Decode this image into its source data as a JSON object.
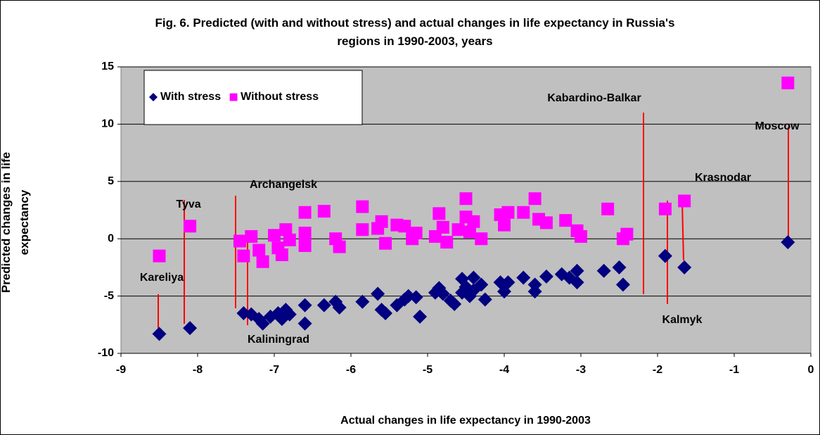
{
  "chart_data": {
    "type": "scatter",
    "title": "Fig. 6. Predicted (with and without stress) and actual changes in life expectancy in Russia's regions in 1990-2003, years",
    "xlabel": "Actual changes in life expectancy in 1990-2003",
    "ylabel": "Predicted changes in life expectancy",
    "xlim": [
      -9,
      0
    ],
    "xticks": [
      -9,
      -8,
      -7,
      -6,
      -5,
      -4,
      -3,
      -2,
      -1,
      0
    ],
    "ylim": [
      -10,
      15
    ],
    "yticks": [
      -10,
      -5,
      0,
      5,
      10,
      15
    ],
    "grid": true,
    "legend": "top-left",
    "annotations": [
      "Kareliya",
      "Tyva",
      "Archangelsk",
      "Kaliningrad",
      "Kabardino-Balkar",
      "Moscow",
      "Krasnodar",
      "Kalmyk"
    ],
    "series": [
      {
        "name": "With stress",
        "color": "#000080",
        "marker": "diamond",
        "x": [
          -8.5,
          -8.1,
          -7.4,
          -7.3,
          -7.2,
          -7.15,
          -7.05,
          -6.95,
          -6.9,
          -6.85,
          -6.8,
          -6.6,
          -6.6,
          -6.35,
          -6.2,
          -6.15,
          -5.85,
          -5.65,
          -5.6,
          -5.55,
          -5.4,
          -5.3,
          -5.25,
          -5.15,
          -5.1,
          -4.9,
          -4.85,
          -4.8,
          -4.7,
          -4.65,
          -4.55,
          -4.55,
          -4.5,
          -4.45,
          -4.4,
          -4.4,
          -4.3,
          -4.25,
          -4.05,
          -4.0,
          -3.95,
          -3.75,
          -3.6,
          -3.6,
          -3.45,
          -3.25,
          -3.15,
          -3.05,
          -3.05,
          -2.7,
          -2.5,
          -2.45,
          -1.9,
          -1.65,
          -0.3
        ],
        "values": [
          -8.3,
          -7.8,
          -6.5,
          -6.6,
          -7.0,
          -7.4,
          -6.8,
          -6.5,
          -7.0,
          -6.2,
          -6.6,
          -5.8,
          -7.4,
          -5.8,
          -5.5,
          -6.0,
          -5.5,
          -4.8,
          -6.2,
          -6.5,
          -5.8,
          -5.3,
          -5.0,
          -5.1,
          -6.8,
          -4.7,
          -4.3,
          -4.8,
          -5.4,
          -5.7,
          -3.5,
          -4.7,
          -4.2,
          -5.0,
          -3.4,
          -4.5,
          -4.0,
          -5.3,
          -3.8,
          -4.6,
          -3.8,
          -3.4,
          -4.0,
          -4.6,
          -3.3,
          -3.1,
          -3.4,
          -2.8,
          -3.8,
          -2.8,
          -2.5,
          -4.0,
          -1.5,
          -2.5,
          -0.3
        ]
      },
      {
        "name": "Without stress",
        "color": "#ff00ff",
        "marker": "square",
        "x": [
          -8.5,
          -8.1,
          -7.45,
          -7.4,
          -7.3,
          -7.2,
          -7.15,
          -7.0,
          -6.95,
          -6.9,
          -6.85,
          -6.8,
          -6.6,
          -6.6,
          -6.6,
          -6.35,
          -6.2,
          -6.15,
          -5.85,
          -5.85,
          -5.65,
          -5.6,
          -5.55,
          -5.4,
          -5.3,
          -5.2,
          -5.15,
          -4.9,
          -4.85,
          -4.8,
          -4.75,
          -4.6,
          -4.5,
          -4.5,
          -4.45,
          -4.4,
          -4.3,
          -4.05,
          -4.0,
          -3.95,
          -3.75,
          -3.6,
          -3.55,
          -3.45,
          -3.2,
          -3.05,
          -3.0,
          -2.65,
          -2.45,
          -2.4,
          -1.9,
          -1.65,
          -0.3
        ],
        "values": [
          -1.5,
          1.1,
          -0.2,
          -1.5,
          0.2,
          -1.0,
          -2.0,
          0.3,
          -0.8,
          -1.4,
          0.8,
          -0.1,
          2.3,
          0.5,
          -0.6,
          2.4,
          0.0,
          -0.7,
          2.8,
          0.8,
          0.9,
          1.5,
          -0.4,
          1.2,
          1.1,
          0.0,
          0.5,
          0.2,
          2.2,
          1.0,
          -0.3,
          0.8,
          3.5,
          1.9,
          0.6,
          1.5,
          0.0,
          2.1,
          1.2,
          2.3,
          2.3,
          3.5,
          1.7,
          1.4,
          1.6,
          0.7,
          0.2,
          2.6,
          0.0,
          0.4,
          2.6,
          3.3,
          13.6
        ]
      }
    ]
  }
}
